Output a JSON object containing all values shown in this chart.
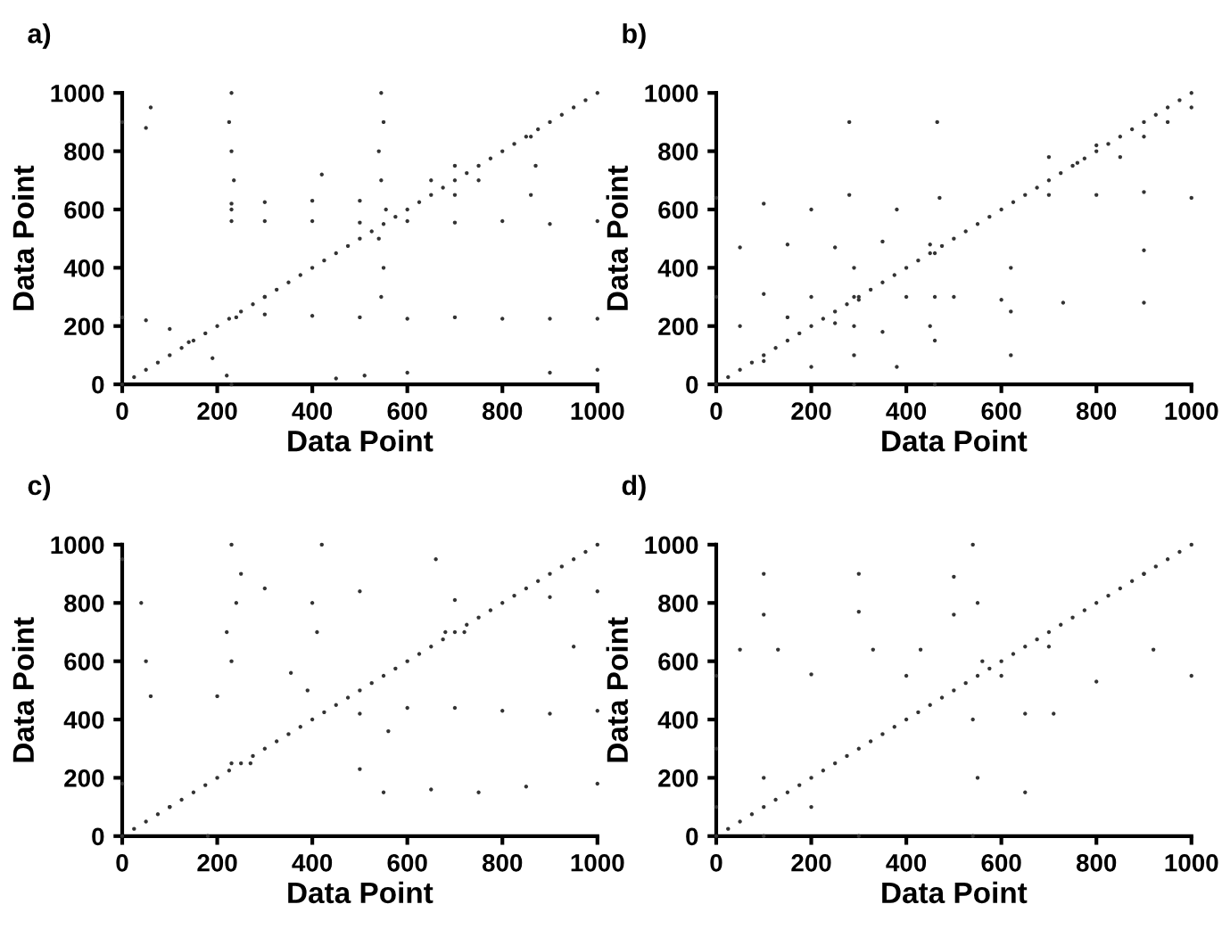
{
  "chart_data": [
    {
      "type": "scatter",
      "title": "a)",
      "xlabel": "Data Point",
      "ylabel": "Data Point",
      "xlim": [
        0,
        1000
      ],
      "ylim": [
        0,
        1000
      ],
      "xticks": [
        0,
        200,
        400,
        600,
        800,
        1000
      ],
      "yticks": [
        0,
        200,
        400,
        600,
        800,
        1000
      ],
      "marker": "circle",
      "grid": false,
      "series": [
        {
          "color": "#333333",
          "x": [
            0,
            25,
            50,
            75,
            100,
            125,
            150,
            175,
            200,
            225,
            250,
            275,
            300,
            325,
            350,
            375,
            400,
            425,
            450,
            475,
            500,
            525,
            550,
            575,
            600,
            625,
            650,
            675,
            700,
            725,
            750,
            775,
            800,
            825,
            850,
            875,
            900,
            925,
            950,
            975,
            1000,
            0,
            50,
            100,
            140,
            190,
            220,
            230,
            240,
            300,
            400,
            500,
            600,
            700,
            800,
            900,
            1000,
            230,
            300,
            400,
            500,
            600,
            700,
            800,
            900,
            1000,
            230,
            300,
            400,
            500,
            545,
            550,
            540,
            555,
            545,
            540,
            550,
            545,
            230,
            235,
            230,
            225,
            230,
            860,
            870,
            860,
            450,
            510,
            600,
            900,
            1000,
            0,
            50,
            60,
            650,
            700,
            750,
            700,
            420,
            300
          ],
          "values": [
            0,
            25,
            50,
            75,
            100,
            125,
            150,
            175,
            200,
            225,
            250,
            275,
            300,
            325,
            350,
            375,
            400,
            425,
            450,
            475,
            500,
            525,
            550,
            575,
            600,
            625,
            650,
            675,
            700,
            725,
            750,
            775,
            800,
            825,
            850,
            875,
            900,
            925,
            950,
            975,
            1000,
            230,
            220,
            190,
            145,
            90,
            30,
            0,
            230,
            240,
            235,
            230,
            225,
            230,
            225,
            225,
            225,
            560,
            560,
            560,
            555,
            560,
            555,
            560,
            550,
            560,
            620,
            625,
            630,
            630,
            300,
            400,
            500,
            600,
            700,
            800,
            900,
            1000,
            600,
            700,
            800,
            900,
            1000,
            650,
            750,
            850,
            20,
            30,
            40,
            40,
            50,
            900,
            880,
            950,
            700,
            650,
            700,
            750,
            720,
            300
          ]
        }
      ]
    },
    {
      "type": "scatter",
      "title": "b)",
      "xlabel": "Data Point",
      "ylabel": "Data Point",
      "xlim": [
        0,
        1000
      ],
      "ylim": [
        0,
        1000
      ],
      "xticks": [
        0,
        200,
        400,
        600,
        800,
        1000
      ],
      "yticks": [
        0,
        200,
        400,
        600,
        800,
        1000
      ],
      "marker": "circle",
      "grid": false,
      "series": [
        {
          "color": "#333333",
          "x": [
            0,
            25,
            50,
            75,
            100,
            125,
            150,
            175,
            200,
            225,
            250,
            275,
            300,
            325,
            350,
            375,
            400,
            425,
            450,
            475,
            500,
            525,
            550,
            575,
            600,
            625,
            650,
            675,
            700,
            725,
            750,
            775,
            800,
            825,
            850,
            875,
            900,
            925,
            950,
            975,
            1000,
            0,
            100,
            200,
            280,
            380,
            470,
            0,
            100,
            200,
            300,
            400,
            500,
            600,
            290,
            290,
            290,
            290,
            290,
            460,
            460,
            460,
            460,
            620,
            620,
            620,
            700,
            760,
            800,
            850,
            900,
            950,
            1000,
            700,
            800,
            900,
            1000,
            280,
            465,
            900,
            900,
            730,
            50,
            150,
            250,
            350,
            450,
            50,
            150,
            250,
            350,
            450,
            200,
            100,
            380
          ],
          "values": [
            0,
            25,
            50,
            75,
            100,
            125,
            150,
            175,
            200,
            225,
            250,
            275,
            300,
            325,
            350,
            375,
            400,
            425,
            450,
            475,
            500,
            525,
            550,
            575,
            600,
            625,
            650,
            675,
            700,
            725,
            750,
            775,
            800,
            825,
            850,
            875,
            900,
            925,
            950,
            975,
            1000,
            640,
            620,
            600,
            650,
            600,
            640,
            300,
            310,
            300,
            290,
            300,
            300,
            290,
            0,
            100,
            200,
            300,
            400,
            0,
            150,
            300,
            450,
            100,
            250,
            400,
            780,
            760,
            820,
            780,
            850,
            900,
            950,
            650,
            650,
            660,
            640,
            900,
            900,
            280,
            460,
            280,
            470,
            480,
            470,
            490,
            480,
            200,
            230,
            210,
            180,
            200,
            60,
            80,
            60
          ]
        }
      ]
    },
    {
      "type": "scatter",
      "title": "c)",
      "xlabel": "Data Point",
      "ylabel": "Data Point",
      "xlim": [
        0,
        1000
      ],
      "ylim": [
        0,
        1000
      ],
      "xticks": [
        0,
        200,
        400,
        600,
        800,
        1000
      ],
      "yticks": [
        0,
        200,
        400,
        600,
        800,
        1000
      ],
      "marker": "circle",
      "grid": false,
      "series": [
        {
          "color": "#333333",
          "x": [
            0,
            25,
            50,
            75,
            100,
            125,
            150,
            175,
            200,
            225,
            250,
            275,
            300,
            325,
            350,
            375,
            400,
            425,
            450,
            475,
            500,
            525,
            550,
            575,
            600,
            625,
            650,
            675,
            700,
            725,
            750,
            775,
            800,
            825,
            850,
            875,
            900,
            925,
            950,
            975,
            1000,
            0,
            100,
            180,
            500,
            600,
            700,
            800,
            900,
            1000,
            500,
            550,
            650,
            750,
            850,
            1000,
            200,
            230,
            220,
            240,
            250,
            230,
            390,
            410,
            400,
            420,
            300,
            500,
            700,
            900,
            1000,
            680,
            720,
            230,
            270,
            355,
            560,
            660,
            950,
            0,
            40,
            50,
            60
          ],
          "values": [
            0,
            25,
            50,
            75,
            100,
            125,
            150,
            175,
            200,
            225,
            250,
            275,
            300,
            325,
            350,
            375,
            400,
            425,
            450,
            475,
            500,
            525,
            550,
            575,
            600,
            625,
            650,
            675,
            700,
            725,
            750,
            775,
            800,
            825,
            850,
            875,
            900,
            925,
            950,
            975,
            1000,
            180,
            100,
            0,
            420,
            440,
            440,
            430,
            420,
            430,
            230,
            150,
            160,
            150,
            170,
            180,
            480,
            600,
            700,
            800,
            900,
            1000,
            500,
            700,
            800,
            1000,
            850,
            840,
            810,
            820,
            840,
            700,
            700,
            250,
            250,
            560,
            360,
            950,
            650,
            950,
            800,
            600,
            480
          ]
        }
      ]
    },
    {
      "type": "scatter",
      "title": "d)",
      "xlabel": "Data Point",
      "ylabel": "Data Point",
      "xlim": [
        0,
        1000
      ],
      "ylim": [
        0,
        1000
      ],
      "xticks": [
        0,
        200,
        400,
        600,
        800,
        1000
      ],
      "yticks": [
        0,
        200,
        400,
        600,
        800,
        1000
      ],
      "marker": "circle",
      "grid": false,
      "series": [
        {
          "color": "#333333",
          "x": [
            0,
            25,
            50,
            75,
            100,
            125,
            150,
            175,
            200,
            225,
            250,
            275,
            300,
            325,
            350,
            375,
            400,
            425,
            450,
            475,
            500,
            525,
            550,
            575,
            600,
            625,
            650,
            675,
            700,
            725,
            750,
            775,
            800,
            825,
            850,
            875,
            900,
            925,
            950,
            975,
            1000,
            0,
            200,
            400,
            600,
            800,
            1000,
            540,
            550,
            540,
            560,
            550,
            540,
            100,
            300,
            500,
            100,
            300,
            500,
            0,
            100,
            200,
            300,
            0,
            100,
            50,
            130,
            330,
            430,
            650,
            650,
            920,
            710,
            700,
            900
          ],
          "values": [
            0,
            25,
            50,
            75,
            100,
            125,
            150,
            175,
            200,
            225,
            250,
            275,
            300,
            325,
            350,
            375,
            400,
            425,
            450,
            475,
            500,
            525,
            550,
            575,
            600,
            625,
            650,
            675,
            700,
            725,
            750,
            775,
            800,
            825,
            850,
            875,
            900,
            925,
            950,
            975,
            1000,
            550,
            555,
            550,
            550,
            530,
            550,
            0,
            200,
            400,
            600,
            800,
            1000,
            900,
            900,
            890,
            760,
            770,
            760,
            300,
            200,
            100,
            0,
            100,
            0,
            640,
            640,
            640,
            640,
            420,
            150,
            640,
            420,
            650,
            900
          ]
        }
      ]
    }
  ]
}
